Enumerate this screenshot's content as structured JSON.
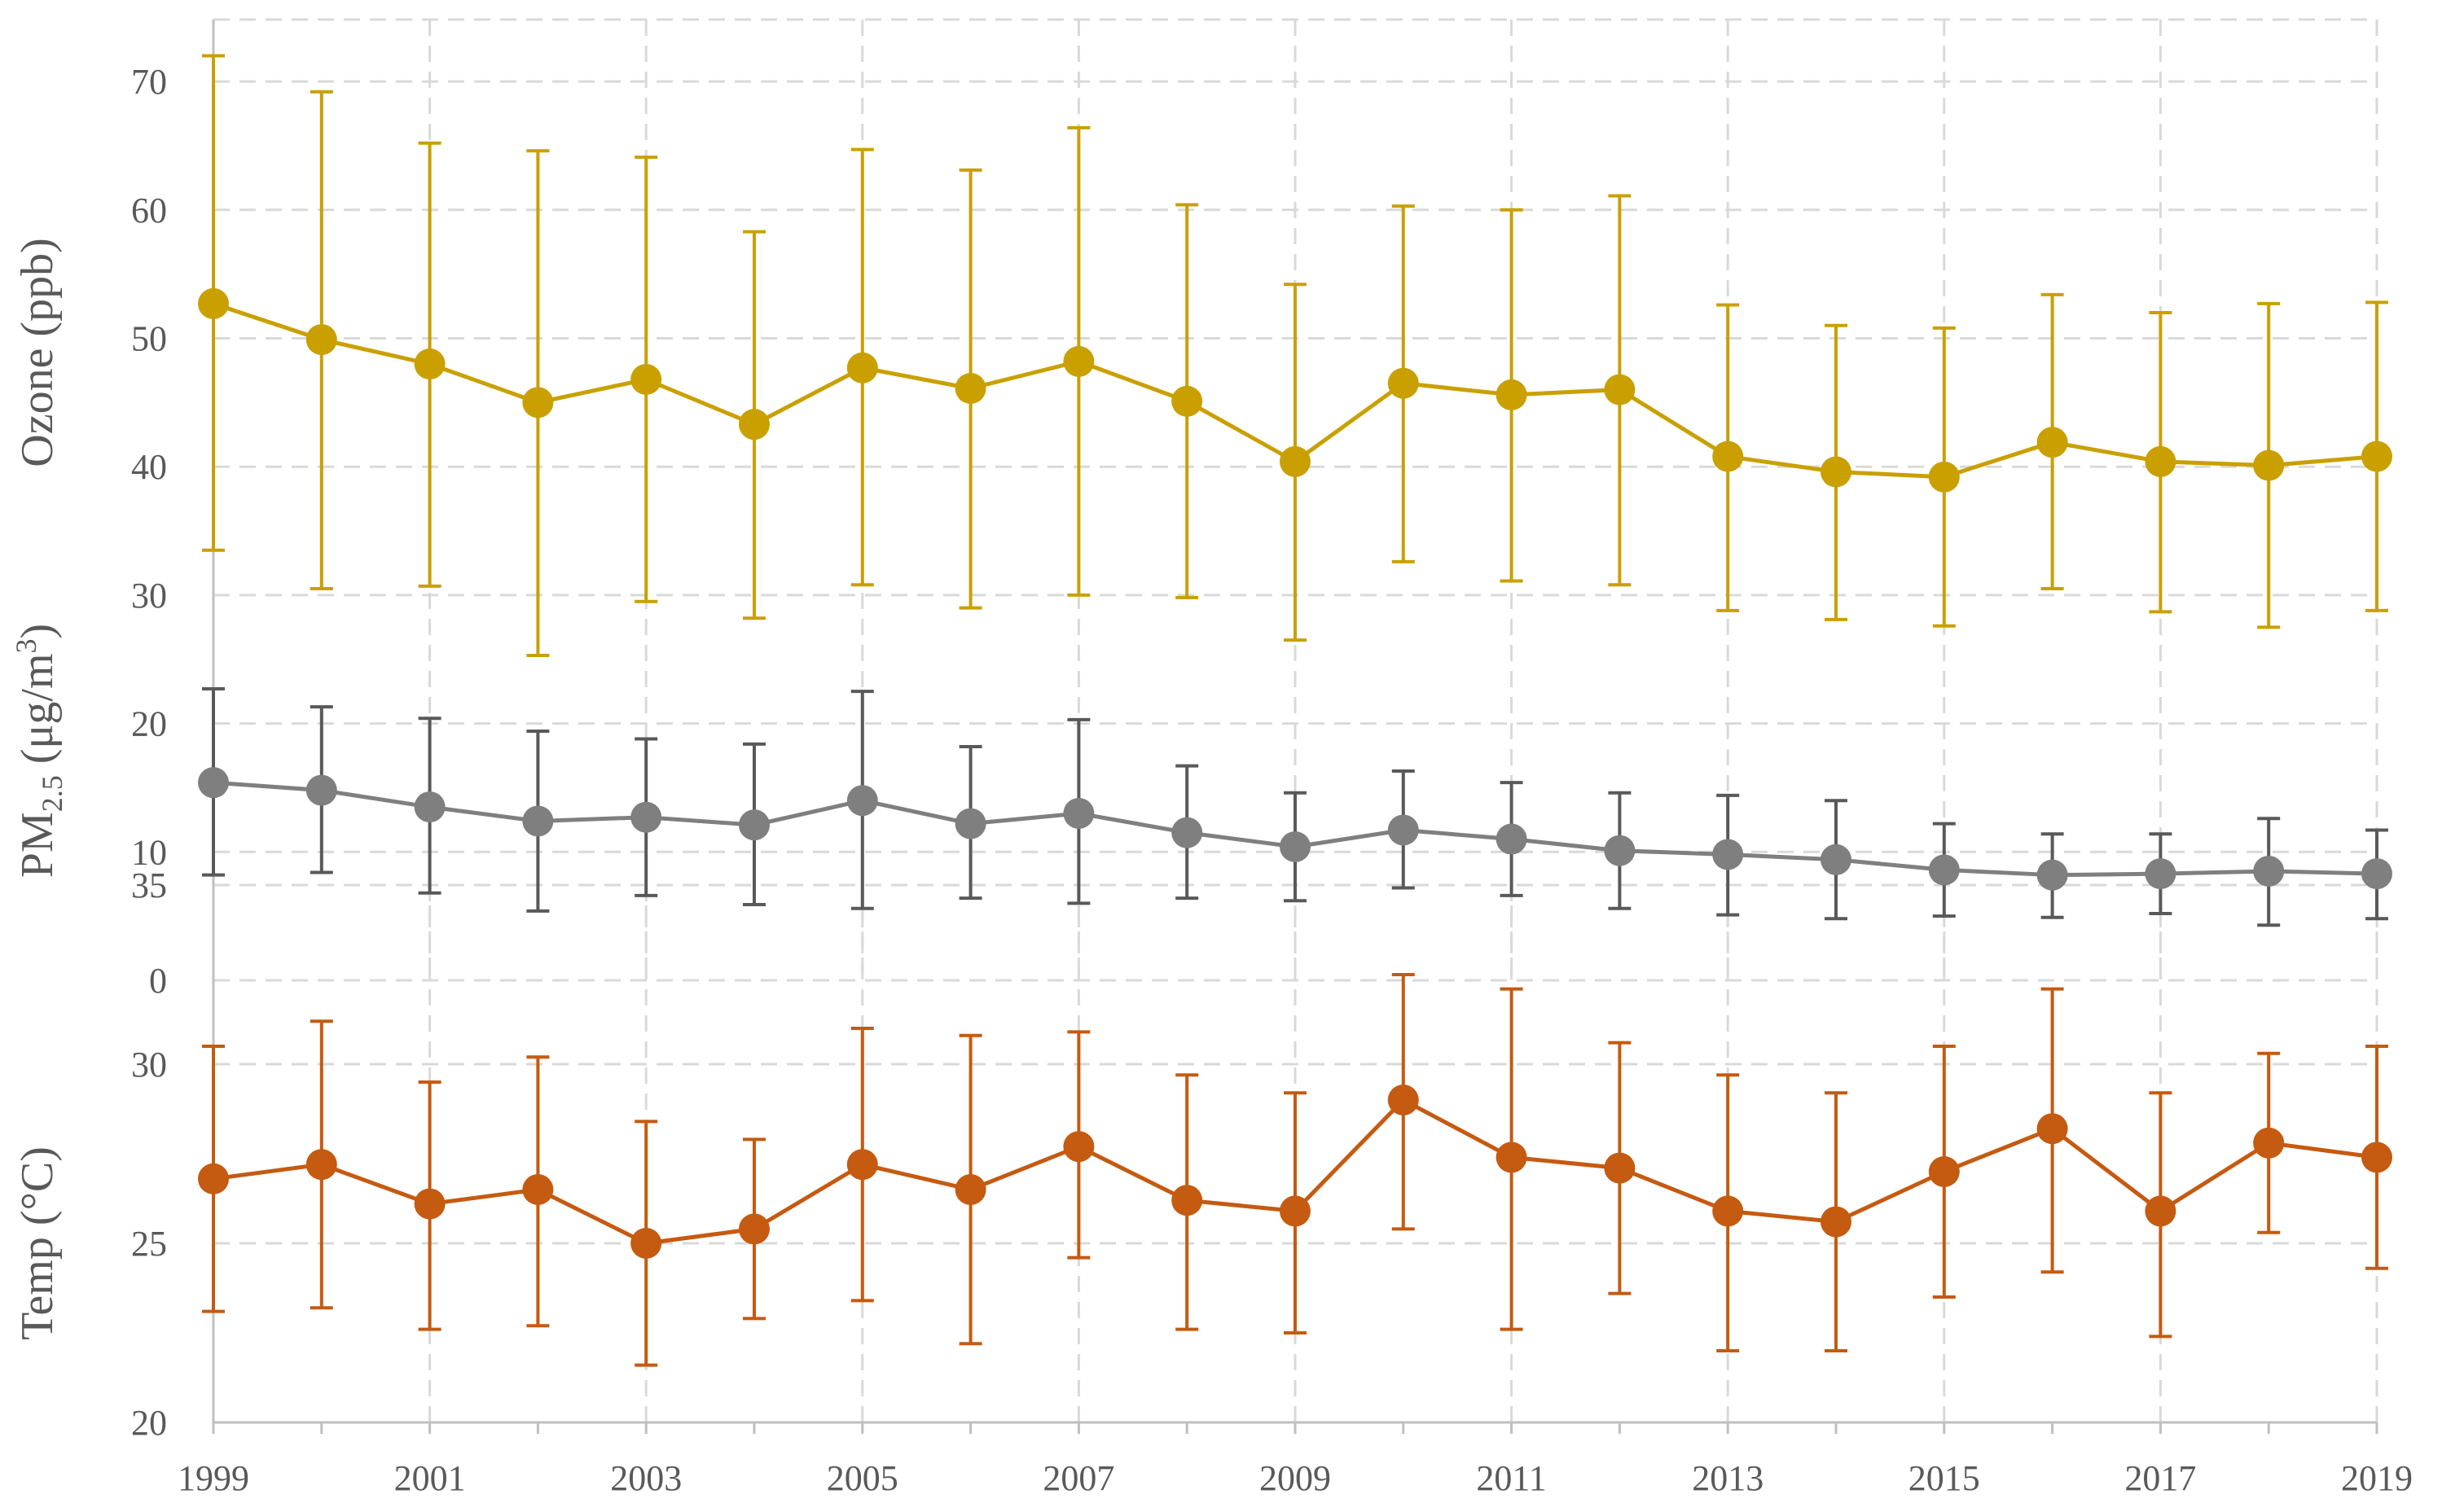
{
  "chart_data": [
    {
      "type": "line",
      "name": "upper-panel",
      "ylabel": "Ozone (ppb)",
      "ylabel2_prefix": "PM",
      "ylabel2_sub": "2.5",
      "ylabel2_mid": " (μg/m",
      "ylabel2_sup": "3",
      "ylabel2_suffix": ")",
      "ylim": [
        0,
        75
      ],
      "yticks": [
        0,
        10,
        20,
        30,
        40,
        50,
        60,
        70
      ],
      "grid": true,
      "x": [
        1999,
        2000,
        2001,
        2002,
        2003,
        2004,
        2005,
        2006,
        2007,
        2008,
        2009,
        2010,
        2011,
        2012,
        2013,
        2014,
        2015,
        2016,
        2017,
        2018,
        2019
      ],
      "series": [
        {
          "name": "Ozone",
          "color": "#c9a000",
          "values": [
            52.7,
            49.9,
            48.0,
            45.0,
            46.8,
            43.3,
            47.7,
            46.1,
            48.2,
            45.1,
            40.4,
            46.5,
            45.6,
            46.0,
            40.8,
            39.6,
            39.2,
            41.9,
            40.4,
            40.1,
            40.8
          ],
          "err_low": [
            33.5,
            30.5,
            30.7,
            25.3,
            29.5,
            28.2,
            30.8,
            29.0,
            30.0,
            29.8,
            26.5,
            32.6,
            31.1,
            30.8,
            28.8,
            28.1,
            27.6,
            30.5,
            28.7,
            27.5,
            28.8
          ],
          "err_high": [
            72.0,
            69.2,
            65.2,
            64.6,
            64.1,
            58.3,
            64.7,
            63.1,
            66.4,
            60.4,
            54.2,
            60.3,
            60.0,
            61.1,
            52.6,
            51.0,
            50.8,
            53.4,
            52.0,
            52.7,
            52.8
          ]
        },
        {
          "name": "PM2.5",
          "color": "#7f7f7f",
          "err_color": "#595959",
          "values": [
            15.4,
            14.8,
            13.5,
            12.4,
            12.7,
            12.1,
            14.0,
            12.2,
            13.0,
            11.5,
            10.4,
            11.7,
            11.0,
            10.1,
            9.8,
            9.4,
            8.6,
            8.2,
            8.3,
            8.5,
            8.3
          ],
          "err_low": [
            8.2,
            8.4,
            6.8,
            5.4,
            6.6,
            5.9,
            5.6,
            6.4,
            6.0,
            6.4,
            6.2,
            7.2,
            6.6,
            5.6,
            5.1,
            4.8,
            5.0,
            4.9,
            5.2,
            4.3,
            4.8
          ],
          "err_high": [
            22.7,
            21.3,
            20.4,
            19.4,
            18.8,
            18.4,
            22.5,
            18.2,
            20.3,
            16.7,
            14.6,
            16.3,
            15.4,
            14.6,
            14.4,
            14.0,
            12.2,
            11.4,
            11.4,
            12.6,
            11.7
          ]
        }
      ]
    },
    {
      "type": "line",
      "name": "lower-panel",
      "ylabel": "Temp (°C)",
      "ylim": [
        20,
        35
      ],
      "yticks": [
        20,
        25,
        30,
        35
      ],
      "grid": true,
      "x": [
        1999,
        2000,
        2001,
        2002,
        2003,
        2004,
        2005,
        2006,
        2007,
        2008,
        2009,
        2010,
        2011,
        2012,
        2013,
        2014,
        2015,
        2016,
        2017,
        2018,
        2019
      ],
      "xticks": [
        "1999",
        "2001",
        "2003",
        "2005",
        "2007",
        "2009",
        "2011",
        "2013",
        "2015",
        "2017",
        "2019"
      ],
      "series": [
        {
          "name": "Temp",
          "color": "#c55a11",
          "values": [
            26.8,
            27.2,
            26.1,
            26.5,
            25.0,
            25.4,
            27.2,
            26.5,
            27.7,
            26.2,
            25.9,
            29.0,
            27.4,
            27.1,
            25.9,
            25.6,
            27.0,
            28.2,
            25.9,
            27.8,
            27.4
          ],
          "err_low": [
            23.1,
            23.2,
            22.6,
            22.7,
            21.6,
            22.9,
            23.4,
            22.2,
            24.6,
            22.6,
            22.5,
            25.4,
            22.6,
            23.6,
            22.0,
            22.0,
            23.5,
            24.2,
            22.4,
            25.3,
            24.3
          ],
          "err_high": [
            30.5,
            31.2,
            29.5,
            30.2,
            28.4,
            27.9,
            31.0,
            30.8,
            30.9,
            29.7,
            29.2,
            32.5,
            32.1,
            30.6,
            29.7,
            29.2,
            30.5,
            32.1,
            29.2,
            30.3,
            30.5
          ]
        }
      ]
    }
  ]
}
